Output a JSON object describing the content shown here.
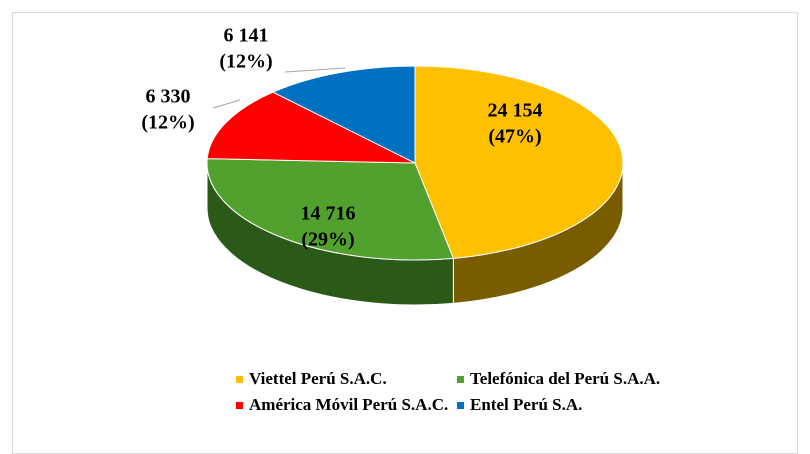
{
  "chart_data": {
    "type": "pie3d",
    "categories": [
      "Viettel Perú S.A.C.",
      "Telefónica del Perú S.A.A.",
      "América Móvil Perú S.A.C.",
      "Entel Perú S.A."
    ],
    "values": [
      24154,
      14716,
      6330,
      6141
    ],
    "value_labels": [
      "24 154",
      "14 716",
      "6 330",
      "6 141"
    ],
    "percent_labels": [
      "(47%)",
      "(29%)",
      "(12%)",
      "(12%)"
    ],
    "colors": [
      "#FFC000",
      "#52A02E",
      "#FF0000",
      "#0070C0"
    ],
    "side_colors": [
      "#7A5C00",
      "#2B5A18",
      "#8A0000",
      "#003C68"
    ],
    "legend": "bottom"
  }
}
